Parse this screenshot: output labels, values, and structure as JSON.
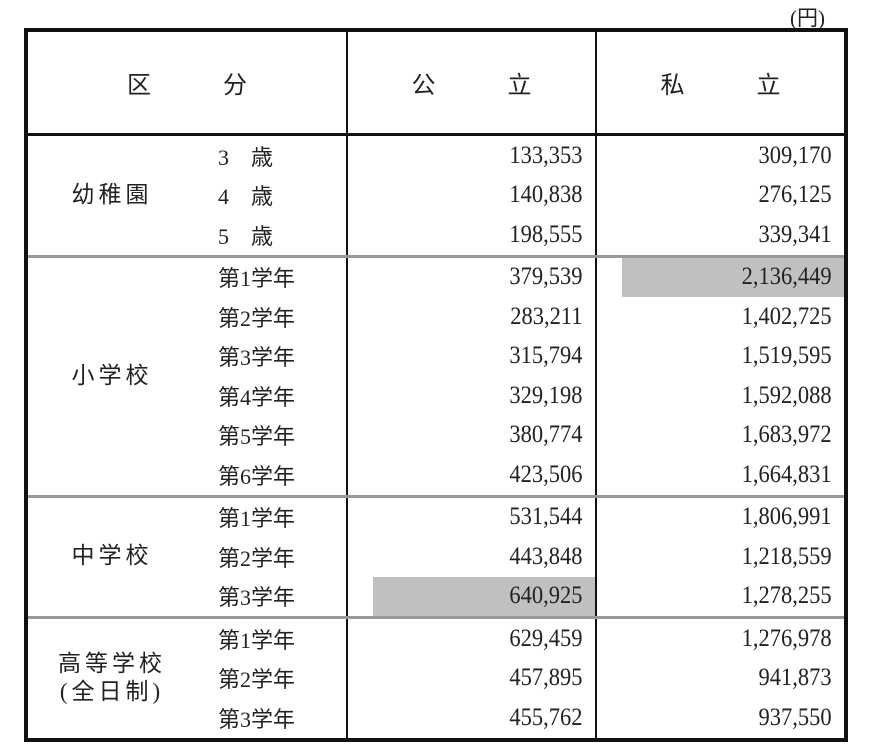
{
  "unit": "(円)",
  "header": {
    "category": [
      "区",
      "分"
    ],
    "public": [
      "公",
      "立"
    ],
    "private": [
      "私",
      "立"
    ]
  },
  "highlight_color": "#c0c0c0",
  "groups": [
    {
      "name": "幼稚園",
      "rows": [
        {
          "label": "3　歳",
          "public": "133,353",
          "private": "309,170"
        },
        {
          "label": "4　歳",
          "public": "140,838",
          "private": "276,125"
        },
        {
          "label": "5　歳",
          "public": "198,555",
          "private": "339,341"
        }
      ]
    },
    {
      "name": "小学校",
      "rows": [
        {
          "label": "第1学年",
          "public": "379,539",
          "private": "2,136,449",
          "highlight": "private"
        },
        {
          "label": "第2学年",
          "public": "283,211",
          "private": "1,402,725"
        },
        {
          "label": "第3学年",
          "public": "315,794",
          "private": "1,519,595"
        },
        {
          "label": "第4学年",
          "public": "329,198",
          "private": "1,592,088"
        },
        {
          "label": "第5学年",
          "public": "380,774",
          "private": "1,683,972"
        },
        {
          "label": "第6学年",
          "public": "423,506",
          "private": "1,664,831"
        }
      ]
    },
    {
      "name": "中学校",
      "rows": [
        {
          "label": "第1学年",
          "public": "531,544",
          "private": "1,806,991"
        },
        {
          "label": "第2学年",
          "public": "443,848",
          "private": "1,218,559"
        },
        {
          "label": "第3学年",
          "public": "640,925",
          "private": "1,278,255",
          "highlight": "public"
        }
      ]
    },
    {
      "name": "高等学校",
      "name2": "(全日制)",
      "rows": [
        {
          "label": "第1学年",
          "public": "629,459",
          "private": "1,276,978"
        },
        {
          "label": "第2学年",
          "public": "457,895",
          "private": "941,873"
        },
        {
          "label": "第3学年",
          "public": "455,762",
          "private": "937,550"
        }
      ]
    }
  ]
}
